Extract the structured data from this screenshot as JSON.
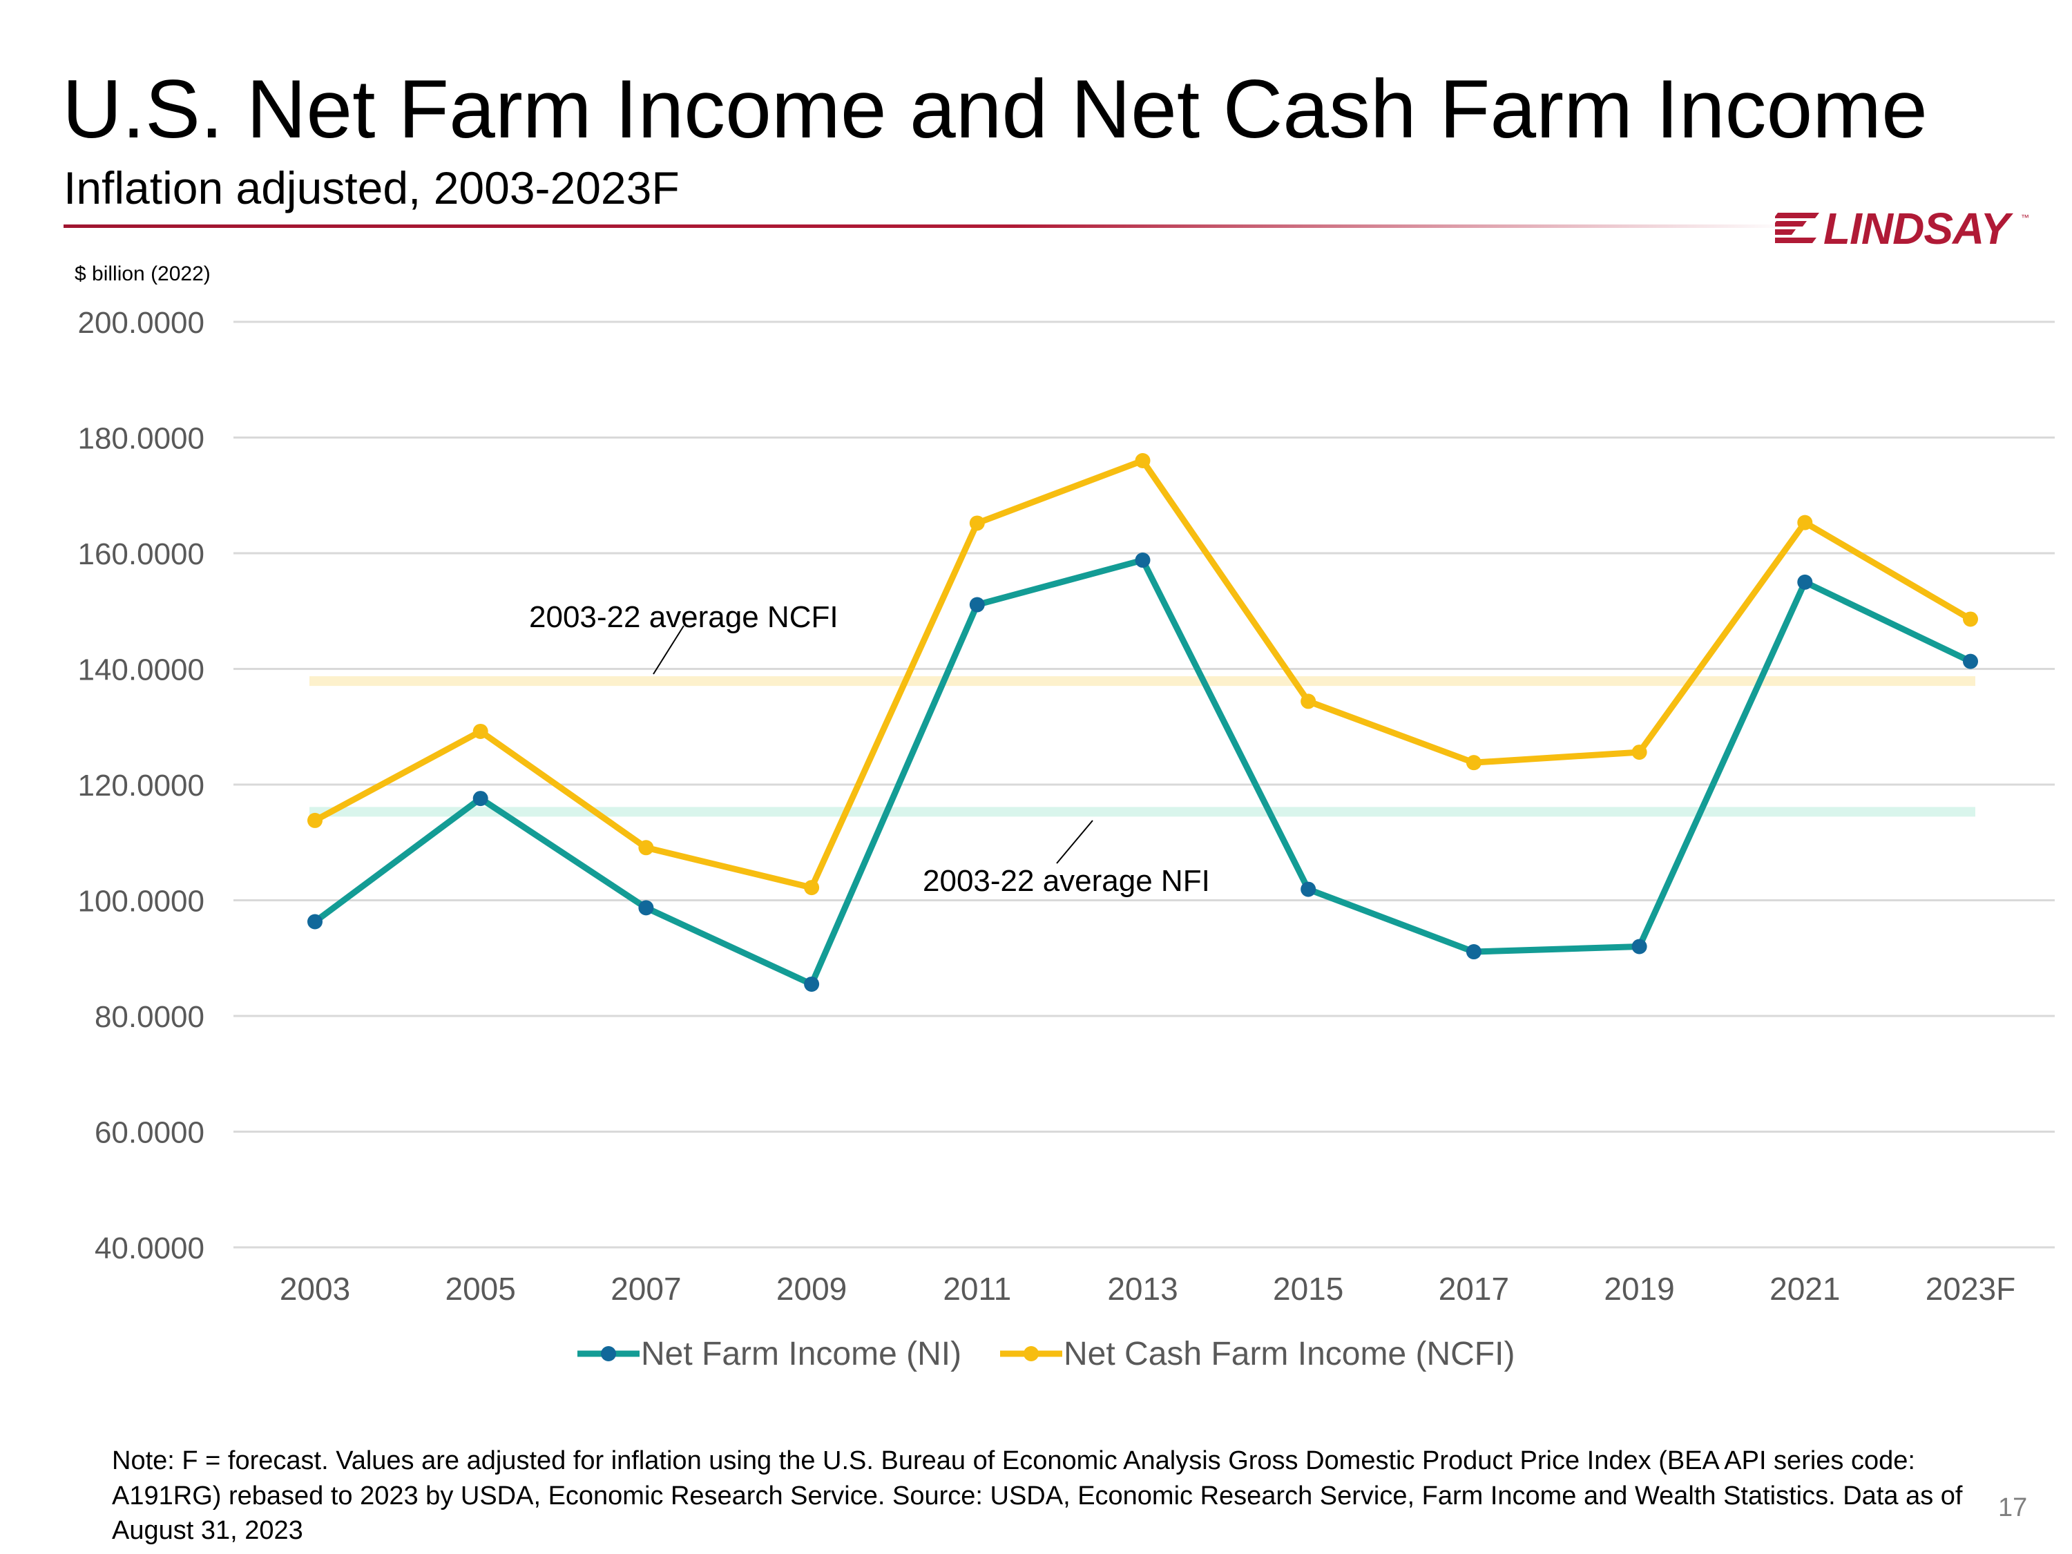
{
  "header": {
    "title": "U.S. Net Farm Income and Net Cash Farm Income",
    "subtitle": "Inflation adjusted, 2003-2023F"
  },
  "logo": {
    "text": "LINDSAY",
    "tm": "™",
    "color": "#b01a36"
  },
  "unit_label": "$ billion (2022)",
  "chart_data": {
    "type": "line",
    "title": "U.S. Net Farm Income and Net Cash Farm Income",
    "subtitle": "Inflation adjusted, 2003-2023F",
    "ylabel": "$ billion (2022)",
    "xlabel": "",
    "categories": [
      "2003",
      "2005",
      "2007",
      "2009",
      "2011",
      "2013",
      "2015",
      "2017",
      "2019",
      "2021",
      "2023F"
    ],
    "ylim": [
      40,
      200
    ],
    "yticks": [
      "40.0000",
      "60.0000",
      "80.0000",
      "100.0000",
      "120.0000",
      "140.0000",
      "160.0000",
      "180.0000",
      "200.0000"
    ],
    "grid": true,
    "legend": "bottom",
    "series": [
      {
        "name": "Net Farm Income (NI)",
        "color": "#139c95",
        "marker_color": "#11689a",
        "values": [
          96.3,
          117.6,
          98.7,
          85.5,
          151.1,
          158.8,
          101.9,
          91.1,
          92.0,
          155.0,
          141.3
        ]
      },
      {
        "name": "Net Cash Farm Income (NCFI)",
        "color": "#f7bd10",
        "marker_color": "#f7bd10",
        "values": [
          113.8,
          129.2,
          109.1,
          102.2,
          165.2,
          176.0,
          134.4,
          123.8,
          125.6,
          165.3,
          148.6
        ]
      }
    ],
    "reference_lines": [
      {
        "label": "2003-22 average NCFI",
        "value": 137.9,
        "color": "#fdf1cc"
      },
      {
        "label": "2003-22 average NFI",
        "value": 115.3,
        "color": "#d9f5ec"
      }
    ]
  },
  "footnote": "Note: F = forecast. Values are adjusted for inflation using the U.S. Bureau of Economic Analysis Gross Domestic Product Price Index (BEA API series code: A191RG) rebased to 2023 by USDA, Economic Research Service.  Source: USDA, Economic Research Service, Farm Income and Wealth Statistics. Data as of August 31, 2023",
  "page_number": "17"
}
